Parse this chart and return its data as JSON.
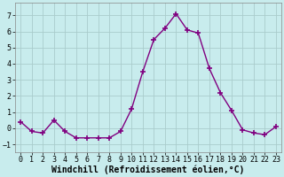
{
  "x": [
    0,
    1,
    2,
    3,
    4,
    5,
    6,
    7,
    8,
    9,
    10,
    11,
    12,
    13,
    14,
    15,
    16,
    17,
    18,
    19,
    20,
    21,
    22,
    23
  ],
  "y": [
    0.4,
    -0.2,
    -0.3,
    0.5,
    -0.2,
    -0.6,
    -0.6,
    -0.6,
    -0.6,
    -0.2,
    1.2,
    3.5,
    5.5,
    6.2,
    7.1,
    6.1,
    5.9,
    3.7,
    2.2,
    1.1,
    -0.1,
    -0.3,
    -0.4,
    0.1
  ],
  "line_color": "#800080",
  "marker": "+",
  "marker_size": 4,
  "marker_linewidth": 1.2,
  "bg_color": "#c8eced",
  "grid_color": "#aacccc",
  "xlabel": "Windchill (Refroidissement éolien,°C)",
  "xlabel_fontsize": 7,
  "tick_fontsize": 6,
  "ylim": [
    -1.5,
    7.8
  ],
  "yticks": [
    -1,
    0,
    1,
    2,
    3,
    4,
    5,
    6,
    7
  ],
  "xlim": [
    -0.5,
    23.5
  ],
  "line_width": 1.0
}
